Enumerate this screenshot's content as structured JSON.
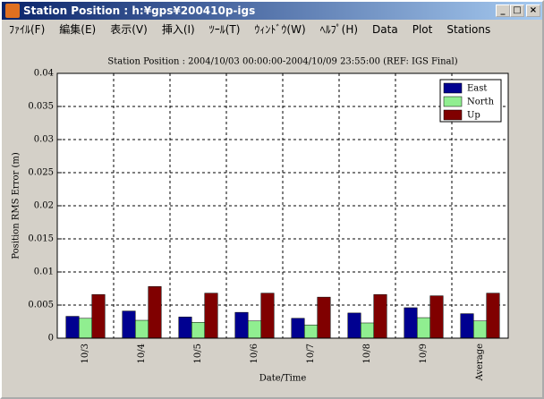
{
  "window": {
    "title": "Station Position : h:¥gps¥200410p-igs",
    "menu": [
      "ﾌｧｲﾙ(F)",
      "編集(E)",
      "表示(V)",
      "挿入(I)",
      "ﾂｰﾙ(T)",
      "ｳｨﾝﾄﾞｳ(W)",
      "ﾍﾙﾌﾟ(H)",
      "Data",
      "Plot",
      "Stations"
    ]
  },
  "chart_data": {
    "type": "bar",
    "title": "Station Position : 2004/10/03 00:00:00-2004/10/09 23:55:00 (REF: IGS Final)",
    "x_label": "Date/Time",
    "y_label": "Position RMS Error (m)",
    "categories": [
      "10/3",
      "10/4",
      "10/5",
      "10/6",
      "10/7",
      "10/8",
      "10/9",
      "Average"
    ],
    "series": [
      {
        "name": "East",
        "color": "#000090",
        "values": [
          0.0033,
          0.0041,
          0.0032,
          0.0039,
          0.003,
          0.0038,
          0.0046,
          0.0037
        ]
      },
      {
        "name": "North",
        "color": "#90ee90",
        "values": [
          0.003,
          0.0027,
          0.0024,
          0.0026,
          0.002,
          0.0023,
          0.0031,
          0.0026
        ]
      },
      {
        "name": "Up",
        "color": "#800000",
        "values": [
          0.0066,
          0.0078,
          0.0068,
          0.0068,
          0.0062,
          0.0066,
          0.0064,
          0.0068
        ]
      }
    ],
    "ylim": [
      0,
      0.04
    ],
    "yticks": [
      0,
      0.005,
      0.01,
      0.015,
      0.02,
      0.025,
      0.03,
      0.035,
      0.04
    ],
    "grid": true,
    "legend": "top-right"
  }
}
